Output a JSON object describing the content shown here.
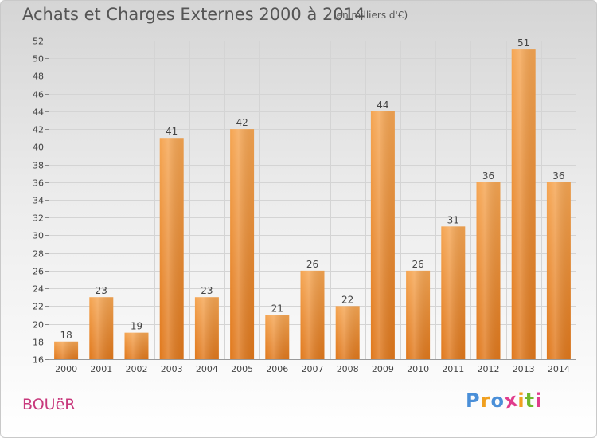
{
  "header": {
    "title": "Achats et Charges Externes 2000 à 2014",
    "subtitle": "(en milliers d'€)"
  },
  "footer": {
    "place_name": "BOUëR",
    "logo_text": "Proxiti",
    "logo_colors": [
      "#4a8fd8",
      "#f0a020",
      "#4a8fd8",
      "#e03c8c",
      "#f0a020",
      "#6fb82e",
      "#e03c8c"
    ]
  },
  "chart_data": {
    "type": "bar",
    "title": "Achats et Charges Externes 2000 à 2014",
    "subtitle": "(en milliers d'€)",
    "xlabel": "",
    "ylabel": "",
    "categories": [
      "2000",
      "2001",
      "2002",
      "2003",
      "2004",
      "2005",
      "2006",
      "2007",
      "2008",
      "2009",
      "2010",
      "2011",
      "2012",
      "2013",
      "2014"
    ],
    "values": [
      18,
      23,
      19,
      41,
      23,
      42,
      21,
      26,
      22,
      44,
      26,
      31,
      36,
      51,
      36
    ],
    "ylim": [
      16,
      52
    ],
    "yticks": [
      16,
      18,
      20,
      22,
      24,
      26,
      28,
      30,
      32,
      34,
      36,
      38,
      40,
      42,
      44,
      46,
      48,
      50,
      52
    ],
    "grid": true,
    "bar_color_light": "#f5a552",
    "bar_color_dark": "#e0781c",
    "grid_color": "#d4d4d4",
    "text_color": "#444444"
  }
}
